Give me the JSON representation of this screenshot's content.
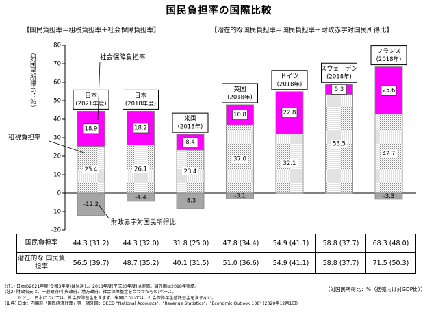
{
  "header": {
    "title": "国民負担率の国際比較",
    "subtitle_left": "【国民負担率＝租税負担率＋社会保障負担率】",
    "subtitle_right": "【潜在的な国民負担率＝国民負担率＋財政赤字対国民所得比】"
  },
  "colors": {
    "social": "#ff00ff",
    "tax_hatch": "#c8c8c8",
    "deficit": "#a6a6a6"
  },
  "chart_data": {
    "type": "bar",
    "stacked": true,
    "ylabel": "（対国民所得比：％）",
    "ylim": [
      -20,
      80
    ],
    "yticks": [
      -20,
      -10,
      0,
      10,
      20,
      30,
      40,
      50,
      60,
      70,
      80
    ],
    "grid": false,
    "categories": [
      {
        "name": "日本",
        "year": "(2021年度)"
      },
      {
        "name": "日本",
        "year": "(2018年度)"
      },
      {
        "name": "米国",
        "year": "(2018年)"
      },
      {
        "name": "英国",
        "year": "(2018年)"
      },
      {
        "name": "ドイツ",
        "year": "(2018年)"
      },
      {
        "name": "スウェーデン",
        "year": "(2018年)"
      },
      {
        "name": "フランス",
        "year": "(2018年)"
      }
    ],
    "series": [
      {
        "name": "租税負担率",
        "values": [
          25.4,
          26.1,
          23.4,
          37.0,
          32.1,
          53.5,
          42.7
        ]
      },
      {
        "name": "社会保障負担率",
        "values": [
          18.9,
          18.2,
          8.4,
          10.8,
          22.8,
          5.3,
          25.6
        ]
      },
      {
        "name": "財政赤字対国民所得比",
        "values": [
          -12.2,
          -4.4,
          -8.3,
          -3.1,
          0.0,
          0.0,
          -3.3
        ]
      }
    ],
    "value_labels": {
      "tax": [
        "25.4",
        "26.1",
        "23.4",
        "37.0",
        "32.1",
        "53.5",
        "42.7"
      ],
      "social": [
        "18.9",
        "18.2",
        "8.4",
        "10.8",
        "22.8",
        "5.3",
        "25.6"
      ],
      "deficit": [
        "-12.2",
        "-4.4",
        "-8.3",
        "-3.1",
        "",
        "",
        "-3.3"
      ]
    }
  },
  "table": {
    "rows": [
      {
        "label": "国民負担率",
        "values": [
          "44.3 (31.2)",
          "44.3 (32.0)",
          "31.8 (25.0)",
          "47.8 (34.4)",
          "54.9 (41.1)",
          "58.8 (37.7)",
          "68.3 (48.0)"
        ]
      },
      {
        "label": "潜在的な 国民負担率",
        "values": [
          "56.5 (39.7)",
          "48.7 (35.2)",
          "40.1 (31.5)",
          "51.0 (36.6)",
          "54.9 (41.1)",
          "58.8 (37.7)",
          "71.5 (50.3)"
        ]
      }
    ]
  },
  "unit_note": "（対国民所得比：%（括弧内は対GDP比））",
  "notes": [
    "(注1) 日本の2021年度(令和3年度)は見通し、2018年度(平成30年度)は実績。諸外国は2018年実績。",
    "(注2) 財政収支は、一般政府(中央政府、地方政府、社会保障基金を合わせたもの)ベース。",
    "　　　ただし、日本については、社会保障基金を含まず、米国については、社会保障年金信託基金を含まない。",
    "(出典) 日本：内閣府「国民経済計算」等　諸外国：OECD \"National Accounts\"、\"Revenue Statistics\"、\"Economic Outlook 108\" (2020年12月1日)"
  ]
}
